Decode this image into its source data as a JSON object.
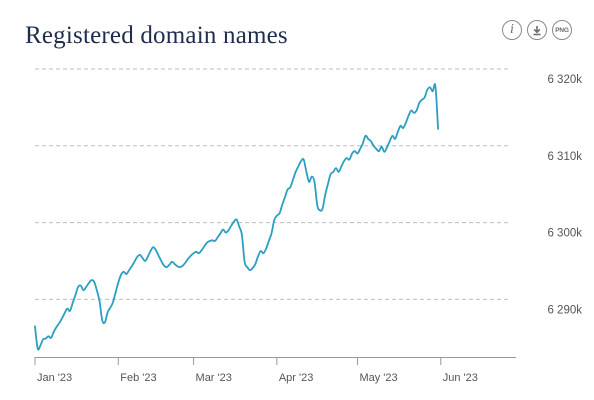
{
  "header": {
    "title": "Registered domain names"
  },
  "toolbar": {
    "info_icon": "info-icon",
    "download_icon": "download-icon",
    "png_label": "PNG"
  },
  "colors": {
    "line": "#2b9fc1",
    "grid": "#bdbdbd",
    "title": "#1f2d4d"
  },
  "chart_data": {
    "type": "line",
    "title": "Registered domain names",
    "xlabel": "",
    "ylabel": "",
    "x_ticks": [
      "Jan '23",
      "Feb '23",
      "Mar '23",
      "Apr '23",
      "May '23",
      "Jun '23"
    ],
    "y_ticks": [
      "6 290k",
      "6 300k",
      "6 310k",
      "6 320k"
    ],
    "y_tick_values": [
      6290,
      6300,
      6310,
      6320
    ],
    "ylim": [
      6282.5,
      6320
    ],
    "xlim": [
      "2023-01-01",
      "2023-06-29"
    ],
    "grid": "horizontal-dashed",
    "legend": "none",
    "series": [
      {
        "values": [
          [
            "2023-01-01",
            6286.5
          ],
          [
            "2023-01-02",
            6283.6
          ],
          [
            "2023-01-03",
            6284.0
          ],
          [
            "2023-01-04",
            6284.8
          ],
          [
            "2023-01-05",
            6284.9
          ],
          [
            "2023-01-06",
            6285.2
          ],
          [
            "2023-01-07",
            6285.0
          ],
          [
            "2023-01-08",
            6285.8
          ],
          [
            "2023-01-09",
            6286.4
          ],
          [
            "2023-01-10",
            6286.9
          ],
          [
            "2023-01-11",
            6287.5
          ],
          [
            "2023-01-12",
            6288.2
          ],
          [
            "2023-01-13",
            6288.8
          ],
          [
            "2023-01-14",
            6288.5
          ],
          [
            "2023-01-15",
            6289.5
          ],
          [
            "2023-01-16",
            6290.5
          ],
          [
            "2023-01-17",
            6291.6
          ],
          [
            "2023-01-18",
            6291.8
          ],
          [
            "2023-01-19",
            6291.2
          ],
          [
            "2023-01-20",
            6291.6
          ],
          [
            "2023-01-21",
            6292.1
          ],
          [
            "2023-01-22",
            6292.5
          ],
          [
            "2023-01-23",
            6292.3
          ],
          [
            "2023-01-24",
            6291.2
          ],
          [
            "2023-01-25",
            6289.8
          ],
          [
            "2023-01-26",
            6287.3
          ],
          [
            "2023-01-27",
            6287.0
          ],
          [
            "2023-01-28",
            6288.3
          ],
          [
            "2023-01-29",
            6288.9
          ],
          [
            "2023-01-30",
            6289.6
          ],
          [
            "2023-01-31",
            6290.9
          ],
          [
            "2023-02-01",
            6292.2
          ],
          [
            "2023-02-02",
            6293.2
          ],
          [
            "2023-02-03",
            6293.6
          ],
          [
            "2023-02-04",
            6293.3
          ],
          [
            "2023-02-05",
            6293.8
          ],
          [
            "2023-02-06",
            6294.3
          ],
          [
            "2023-02-07",
            6294.9
          ],
          [
            "2023-02-08",
            6295.5
          ],
          [
            "2023-02-09",
            6295.8
          ],
          [
            "2023-02-10",
            6295.4
          ],
          [
            "2023-02-11",
            6295.0
          ],
          [
            "2023-02-12",
            6295.6
          ],
          [
            "2023-02-13",
            6296.3
          ],
          [
            "2023-02-14",
            6296.8
          ],
          [
            "2023-02-15",
            6296.4
          ],
          [
            "2023-02-16",
            6295.7
          ],
          [
            "2023-02-17",
            6295.0
          ],
          [
            "2023-02-18",
            6294.4
          ],
          [
            "2023-02-19",
            6294.2
          ],
          [
            "2023-02-20",
            6294.5
          ],
          [
            "2023-02-21",
            6294.9
          ],
          [
            "2023-02-22",
            6294.6
          ],
          [
            "2023-02-23",
            6294.3
          ],
          [
            "2023-02-24",
            6294.2
          ],
          [
            "2023-02-25",
            6294.4
          ],
          [
            "2023-02-26",
            6294.8
          ],
          [
            "2023-02-27",
            6295.3
          ],
          [
            "2023-02-28",
            6295.7
          ],
          [
            "2023-03-01",
            6296.0
          ],
          [
            "2023-03-02",
            6296.2
          ],
          [
            "2023-03-03",
            6296.0
          ],
          [
            "2023-03-04",
            6296.4
          ],
          [
            "2023-03-05",
            6296.9
          ],
          [
            "2023-03-06",
            6297.4
          ],
          [
            "2023-03-07",
            6297.6
          ],
          [
            "2023-03-08",
            6297.7
          ],
          [
            "2023-03-09",
            6297.6
          ],
          [
            "2023-03-10",
            6298.1
          ],
          [
            "2023-03-11",
            6298.6
          ],
          [
            "2023-03-12",
            6299.1
          ],
          [
            "2023-03-13",
            6298.7
          ],
          [
            "2023-03-14",
            6299.0
          ],
          [
            "2023-03-15",
            6299.6
          ],
          [
            "2023-03-16",
            6300.1
          ],
          [
            "2023-03-17",
            6300.4
          ],
          [
            "2023-03-18",
            6299.5
          ],
          [
            "2023-03-19",
            6298.4
          ],
          [
            "2023-03-20",
            6294.9
          ],
          [
            "2023-03-21",
            6294.2
          ],
          [
            "2023-03-22",
            6293.8
          ],
          [
            "2023-03-23",
            6294.1
          ],
          [
            "2023-03-24",
            6294.6
          ],
          [
            "2023-03-25",
            6295.6
          ],
          [
            "2023-03-26",
            6296.3
          ],
          [
            "2023-03-27",
            6296.0
          ],
          [
            "2023-03-28",
            6296.6
          ],
          [
            "2023-03-29",
            6297.6
          ],
          [
            "2023-03-30",
            6298.6
          ],
          [
            "2023-03-31",
            6300.3
          ],
          [
            "2023-04-01",
            6300.9
          ],
          [
            "2023-04-02",
            6301.2
          ],
          [
            "2023-04-03",
            6302.3
          ],
          [
            "2023-04-04",
            6303.3
          ],
          [
            "2023-04-05",
            6304.3
          ],
          [
            "2023-04-06",
            6304.6
          ],
          [
            "2023-04-07",
            6305.6
          ],
          [
            "2023-04-08",
            6306.6
          ],
          [
            "2023-04-09",
            6307.3
          ],
          [
            "2023-04-10",
            6308.0
          ],
          [
            "2023-04-11",
            6308.2
          ],
          [
            "2023-04-12",
            6306.6
          ],
          [
            "2023-04-13",
            6305.3
          ],
          [
            "2023-04-14",
            6306.0
          ],
          [
            "2023-04-15",
            6305.3
          ],
          [
            "2023-04-16",
            6302.3
          ],
          [
            "2023-04-17",
            6301.6
          ],
          [
            "2023-04-18",
            6301.8
          ],
          [
            "2023-04-19",
            6303.6
          ],
          [
            "2023-04-20",
            6305.0
          ],
          [
            "2023-04-21",
            6306.3
          ],
          [
            "2023-04-22",
            6306.6
          ],
          [
            "2023-04-23",
            6307.1
          ],
          [
            "2023-04-24",
            6306.6
          ],
          [
            "2023-04-25",
            6307.3
          ],
          [
            "2023-04-26",
            6308.0
          ],
          [
            "2023-04-27",
            6308.4
          ],
          [
            "2023-04-28",
            6308.2
          ],
          [
            "2023-04-29",
            6309.0
          ],
          [
            "2023-04-30",
            6309.3
          ],
          [
            "2023-05-01",
            6309.0
          ],
          [
            "2023-05-02",
            6309.6
          ],
          [
            "2023-05-03",
            6310.3
          ],
          [
            "2023-05-04",
            6311.3
          ],
          [
            "2023-05-05",
            6310.9
          ],
          [
            "2023-05-06",
            6310.6
          ],
          [
            "2023-05-07",
            6310.0
          ],
          [
            "2023-05-08",
            6309.6
          ],
          [
            "2023-05-09",
            6309.3
          ],
          [
            "2023-05-10",
            6309.9
          ],
          [
            "2023-05-11",
            6309.2
          ],
          [
            "2023-05-12",
            6309.8
          ],
          [
            "2023-05-13",
            6310.6
          ],
          [
            "2023-05-14",
            6311.3
          ],
          [
            "2023-05-15",
            6310.9
          ],
          [
            "2023-05-16",
            6311.8
          ],
          [
            "2023-05-17",
            6312.6
          ],
          [
            "2023-05-18",
            6312.3
          ],
          [
            "2023-05-19",
            6313.0
          ],
          [
            "2023-05-20",
            6313.9
          ],
          [
            "2023-05-21",
            6314.6
          ],
          [
            "2023-05-22",
            6314.3
          ],
          [
            "2023-05-23",
            6314.6
          ],
          [
            "2023-05-24",
            6315.6
          ],
          [
            "2023-05-25",
            6316.0
          ],
          [
            "2023-05-26",
            6316.3
          ],
          [
            "2023-05-27",
            6317.3
          ],
          [
            "2023-05-28",
            6317.6
          ],
          [
            "2023-05-29",
            6317.1
          ],
          [
            "2023-05-30",
            6317.8
          ],
          [
            "2023-05-31",
            6312.2
          ]
        ]
      }
    ]
  }
}
